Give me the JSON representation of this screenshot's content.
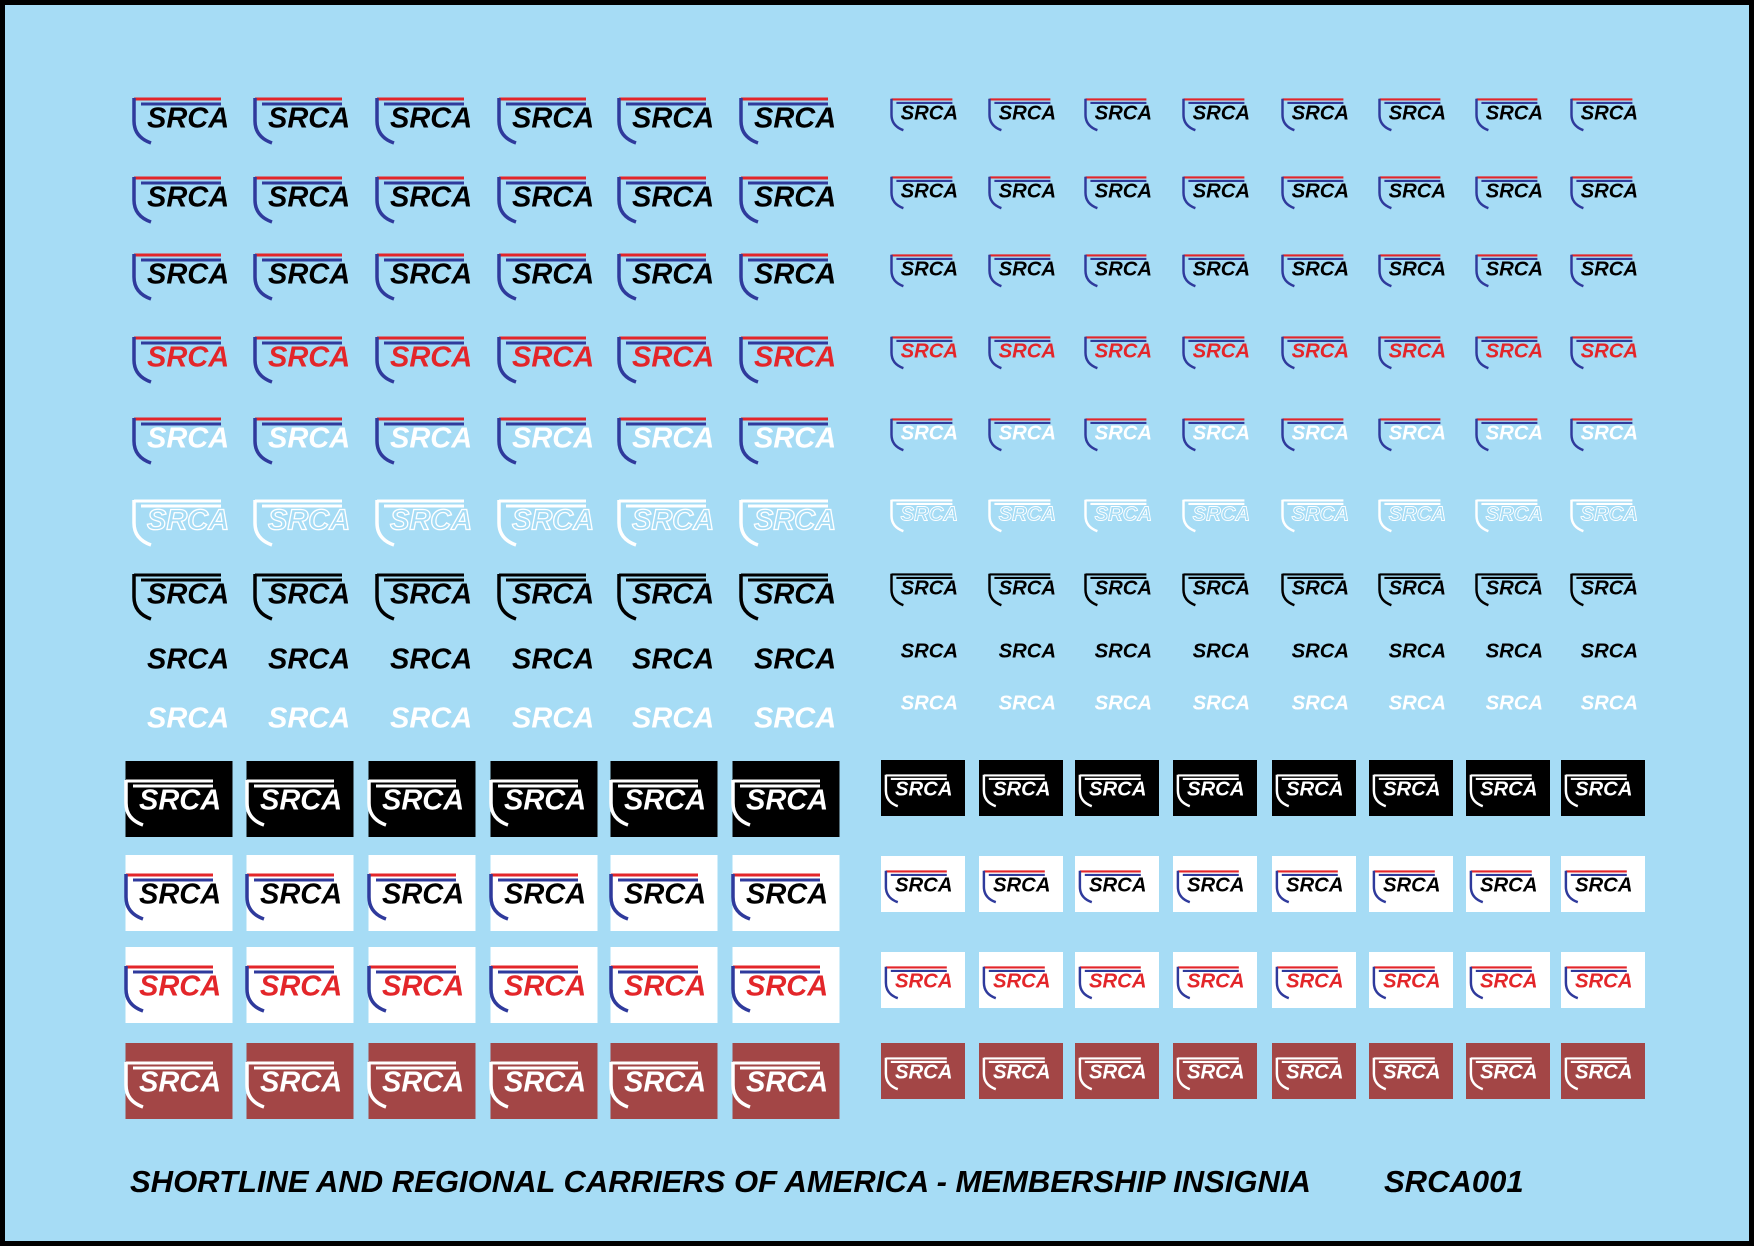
{
  "left_panel": {
    "rows": [
      {
        "labels": [
          "SRCA",
          "SRCA",
          "SRCA",
          "SRCA",
          "SRCA",
          "SRCA"
        ]
      },
      {
        "labels": [
          "SRCA",
          "SRCA",
          "SRCA",
          "SRCA",
          "SRCA",
          "SRCA"
        ]
      },
      {
        "labels": [
          "SRCA",
          "SRCA",
          "SRCA",
          "SRCA",
          "SRCA",
          "SRCA"
        ]
      },
      {
        "labels": [
          "SRCA",
          "SRCA",
          "SRCA",
          "SRCA",
          "SRCA",
          "SRCA"
        ]
      },
      {
        "labels": [
          "SRCA",
          "SRCA",
          "SRCA",
          "SRCA",
          "SRCA",
          "SRCA"
        ]
      },
      {
        "labels": [
          "SRCA",
          "SRCA",
          "SRCA",
          "SRCA",
          "SRCA",
          "SRCA"
        ]
      },
      {
        "labels": [
          "SRCA",
          "SRCA",
          "SRCA",
          "SRCA",
          "SRCA",
          "SRCA"
        ]
      },
      {
        "labels": [
          "SRCA",
          "SRCA",
          "SRCA",
          "SRCA",
          "SRCA",
          "SRCA"
        ]
      },
      {
        "labels": [
          "SRCA",
          "SRCA",
          "SRCA",
          "SRCA",
          "SRCA",
          "SRCA"
        ]
      },
      {
        "labels": [
          "SRCA",
          "SRCA",
          "SRCA",
          "SRCA",
          "SRCA",
          "SRCA"
        ]
      },
      {
        "labels": [
          "SRCA",
          "SRCA",
          "SRCA",
          "SRCA",
          "SRCA",
          "SRCA"
        ]
      },
      {
        "labels": [
          "SRCA",
          "SRCA",
          "SRCA",
          "SRCA",
          "SRCA",
          "SRCA"
        ]
      },
      {
        "labels": [
          "SRCA",
          "SRCA",
          "SRCA",
          "SRCA",
          "SRCA",
          "SRCA"
        ]
      }
    ]
  },
  "right_panel": {
    "rows": [
      {
        "labels": [
          "SRCA",
          "SRCA",
          "SRCA",
          "SRCA",
          "SRCA",
          "SRCA",
          "SRCA",
          "SRCA"
        ]
      },
      {
        "labels": [
          "SRCA",
          "SRCA",
          "SRCA",
          "SRCA",
          "SRCA",
          "SRCA",
          "SRCA",
          "SRCA"
        ]
      },
      {
        "labels": [
          "SRCA",
          "SRCA",
          "SRCA",
          "SRCA",
          "SRCA",
          "SRCA",
          "SRCA",
          "SRCA"
        ]
      },
      {
        "labels": [
          "SRCA",
          "SRCA",
          "SRCA",
          "SRCA",
          "SRCA",
          "SRCA",
          "SRCA",
          "SRCA"
        ]
      },
      {
        "labels": [
          "SRCA",
          "SRCA",
          "SRCA",
          "SRCA",
          "SRCA",
          "SRCA",
          "SRCA",
          "SRCA"
        ]
      },
      {
        "labels": [
          "SRCA",
          "SRCA",
          "SRCA",
          "SRCA",
          "SRCA",
          "SRCA",
          "SRCA",
          "SRCA"
        ]
      },
      {
        "labels": [
          "SRCA",
          "SRCA",
          "SRCA",
          "SRCA",
          "SRCA",
          "SRCA",
          "SRCA",
          "SRCA"
        ]
      },
      {
        "labels": [
          "SRCA",
          "SRCA",
          "SRCA",
          "SRCA",
          "SRCA",
          "SRCA",
          "SRCA",
          "SRCA"
        ]
      },
      {
        "labels": [
          "SRCA",
          "SRCA",
          "SRCA",
          "SRCA",
          "SRCA",
          "SRCA",
          "SRCA",
          "SRCA"
        ]
      },
      {
        "labels": [
          "SRCA",
          "SRCA",
          "SRCA",
          "SRCA",
          "SRCA",
          "SRCA",
          "SRCA",
          "SRCA"
        ]
      },
      {
        "labels": [
          "SRCA",
          "SRCA",
          "SRCA",
          "SRCA",
          "SRCA",
          "SRCA",
          "SRCA",
          "SRCA"
        ]
      },
      {
        "labels": [
          "SRCA",
          "SRCA",
          "SRCA",
          "SRCA",
          "SRCA",
          "SRCA",
          "SRCA",
          "SRCA"
        ]
      },
      {
        "labels": [
          "SRCA",
          "SRCA",
          "SRCA",
          "SRCA",
          "SRCA",
          "SRCA",
          "SRCA",
          "SRCA"
        ]
      }
    ]
  },
  "footer": {
    "title": "SHORTLINE AND REGIONAL CARRIERS OF AMERICA - MEMBERSHIP INSIGNIA",
    "code": "SRCA001"
  }
}
